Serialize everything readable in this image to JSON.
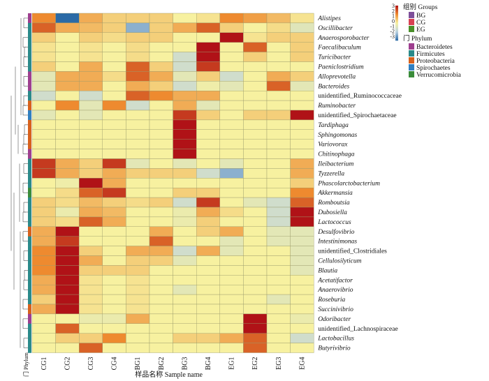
{
  "chart_data": {
    "type": "heatmap",
    "xlabel": "样品名称 Sample name",
    "columns": [
      "CG1",
      "CG2",
      "CG3",
      "CG4",
      "BG1",
      "BG2",
      "BG3",
      "BG4",
      "EG1",
      "EG2",
      "EG3",
      "EG4"
    ],
    "column_groups": [
      "CG",
      "CG",
      "CG",
      "CG",
      "BG",
      "BG",
      "BG",
      "BG",
      "EG",
      "EG",
      "EG",
      "EG"
    ],
    "rows": [
      "Alistipes",
      "Oscillibacter",
      "Anaerosporobacter",
      "Faecalibaculum",
      "Turicibacter",
      "Paeniclostridium",
      "Alloprevotella",
      "Bacteroides",
      "unidentified_Ruminococcaceae",
      "Ruminobacter",
      "unidentified_Spirochaetaceae",
      "Tardiphaga",
      "Sphingomonas",
      "Variovorax",
      "Chitinophaga",
      "Ileibacterium",
      "Tyzzerella",
      "Phascolarctobacterium",
      "Akkermansia",
      "Romboutsia",
      "Dubosiella",
      "Lactococcus",
      "Desulfovibrio",
      "Intestinimonas",
      "unidentified_Clostridiales",
      "Cellulosilyticum",
      "Blautia",
      "Acetatifactor",
      "Anaerovibrio",
      "Roseburia",
      "Succinivibrio",
      "Odoribacter",
      "unidentified_Lachnospiraceae",
      "Lactobacillus",
      "Butyrivibrio"
    ],
    "row_phylum": [
      "Bacteroidetes",
      "Firmicutes",
      "Firmicutes",
      "Firmicutes",
      "Firmicutes",
      "Firmicutes",
      "Bacteroidetes",
      "Bacteroidetes",
      "Firmicutes",
      "Proteobacteria",
      "Spirochaetes",
      "Proteobacteria",
      "Proteobacteria",
      "Proteobacteria",
      "Bacteroidetes",
      "Firmicutes",
      "Firmicutes",
      "Firmicutes",
      "Verrucomicrobia",
      "Firmicutes",
      "Firmicutes",
      "Firmicutes",
      "Proteobacteria",
      "Firmicutes",
      "Firmicutes",
      "Firmicutes",
      "Firmicutes",
      "Firmicutes",
      "Firmicutes",
      "Firmicutes",
      "Proteobacteria",
      "Bacteroidetes",
      "Firmicutes",
      "Firmicutes",
      "Firmicutes"
    ],
    "values": [
      [
        1.5,
        -3,
        1,
        0.5,
        0.5,
        0.5,
        0,
        0.2,
        1.5,
        1.2,
        0.8,
        0.2
      ],
      [
        2,
        1,
        0.8,
        0.5,
        -2,
        0.5,
        1,
        2,
        0.5,
        0,
        0.3,
        -0.6
      ],
      [
        0.5,
        0,
        0.5,
        0.3,
        0.5,
        0.5,
        0,
        0,
        3,
        0.2,
        0.5,
        0.5
      ],
      [
        0.2,
        0,
        0.2,
        0,
        0.3,
        0,
        0,
        3,
        0,
        2,
        0,
        0.5
      ],
      [
        0.2,
        0,
        0.2,
        0,
        0.3,
        0,
        -1,
        3,
        0,
        0.5,
        0,
        0.5
      ],
      [
        0.5,
        0,
        1,
        0,
        2,
        0.5,
        -1,
        2.5,
        0,
        0,
        0,
        0
      ],
      [
        -0.5,
        1,
        1,
        0.3,
        2,
        1,
        -0.5,
        0.5,
        -1,
        0,
        1,
        0.5
      ],
      [
        -0.5,
        1,
        1,
        0,
        1,
        0.5,
        -1,
        -0.2,
        -0.5,
        0,
        2,
        -0.5
      ],
      [
        -1,
        0,
        -1,
        0,
        2,
        1.5,
        1,
        1,
        0,
        0,
        0,
        0
      ],
      [
        0,
        1.5,
        -0.5,
        1.5,
        -1,
        0,
        1,
        -0.5,
        0,
        0,
        0,
        0
      ],
      [
        -0.5,
        0,
        -0.5,
        0,
        0,
        0,
        2.5,
        0.5,
        0,
        0.5,
        0.5,
        3
      ],
      [
        0,
        0,
        0,
        0,
        0,
        0,
        3.5,
        0,
        0,
        0,
        0,
        0
      ],
      [
        0,
        0,
        0,
        0,
        0,
        0,
        3.5,
        0,
        0,
        0,
        0,
        0
      ],
      [
        0,
        0,
        0,
        0,
        0,
        0,
        3.5,
        0,
        0,
        0,
        0,
        0
      ],
      [
        0,
        0,
        0,
        0,
        0,
        0,
        3.5,
        0,
        0,
        0,
        0,
        0
      ],
      [
        2.5,
        1,
        0.5,
        2.5,
        -0.5,
        0,
        -0.5,
        0,
        -0.5,
        0,
        0,
        1
      ],
      [
        2.5,
        1,
        0.5,
        1,
        0.5,
        0.5,
        0.5,
        -1,
        -2,
        0,
        0,
        1
      ],
      [
        0,
        -0.2,
        3,
        1,
        0,
        0,
        0,
        0,
        0,
        0,
        0,
        0.5
      ],
      [
        0,
        0.3,
        2,
        2.5,
        0,
        0,
        0.5,
        0.5,
        0,
        0,
        0,
        1.5
      ],
      [
        0.5,
        0.3,
        0.8,
        0.5,
        0.3,
        0.5,
        -1,
        2.5,
        0,
        -0.5,
        -1,
        2
      ],
      [
        0.5,
        -0.3,
        1,
        0.8,
        0,
        0,
        -0.3,
        1,
        0.3,
        0,
        -1,
        3
      ],
      [
        0.5,
        0.3,
        2,
        1,
        0,
        0,
        -0.3,
        0.5,
        0,
        0,
        -1,
        3
      ],
      [
        1,
        3,
        0,
        0,
        0,
        1,
        0,
        0.5,
        1,
        0,
        -0.5,
        -0.5
      ],
      [
        1,
        2.5,
        0,
        0,
        0,
        2,
        0,
        0,
        -0.5,
        0,
        -0.5,
        -0.5
      ],
      [
        1.5,
        3,
        0.5,
        0,
        1,
        1,
        -1,
        1,
        -0.5,
        0,
        0,
        -0.5
      ],
      [
        1.5,
        3,
        1,
        0,
        0.5,
        0.5,
        -0.5,
        0,
        0,
        0,
        0,
        -0.5
      ],
      [
        1.5,
        3,
        0.5,
        0.5,
        0.5,
        0,
        0,
        0,
        0,
        0,
        0,
        -0.5
      ],
      [
        1,
        3.5,
        0.2,
        0,
        0.2,
        0,
        0,
        0,
        0,
        0,
        0,
        0
      ],
      [
        1,
        3.5,
        0.2,
        0,
        0.2,
        0,
        -0.5,
        0,
        0,
        0,
        0,
        0
      ],
      [
        0.5,
        3.5,
        0.2,
        0,
        0.2,
        0,
        0,
        0,
        0,
        0,
        -0.5,
        0
      ],
      [
        1,
        3.5,
        0.2,
        0,
        0.2,
        0,
        0,
        0,
        0,
        0,
        0,
        0
      ],
      [
        0,
        0,
        -0.3,
        -0.3,
        1,
        0,
        0,
        0,
        0,
        3,
        0,
        -0.3
      ],
      [
        0,
        2,
        0,
        0,
        0,
        0,
        0,
        0,
        0,
        3,
        0,
        0
      ],
      [
        0,
        0.5,
        0.5,
        1.5,
        0,
        0,
        0.5,
        0.5,
        1,
        2,
        0,
        -1
      ],
      [
        0,
        0,
        2,
        0,
        0,
        0,
        0,
        0,
        0,
        2,
        0,
        0
      ]
    ],
    "color_scale": {
      "min": -3,
      "max": 3,
      "low": "#2b6aa6",
      "mid": "#f7f1a0",
      "high": "#b01217"
    },
    "legend": {
      "scale_ticks": [
        "3",
        "2",
        "1",
        "0",
        "-1",
        "-2",
        "-3"
      ],
      "groups_title": "组别 Groups",
      "groups": [
        {
          "name": "BG",
          "color": "#7e4f9a"
        },
        {
          "name": "CG",
          "color": "#d94153"
        },
        {
          "name": "EG",
          "color": "#4a8f2a"
        }
      ],
      "phylum_title": "门 Phylum",
      "phyla": [
        {
          "name": "Bacteroidetes",
          "color": "#9e3f8f"
        },
        {
          "name": "Firmicutes",
          "color": "#2b8a8a"
        },
        {
          "name": "Proteobacteria",
          "color": "#d8611c"
        },
        {
          "name": "Spirochaetes",
          "color": "#2f7fc1"
        },
        {
          "name": "Verrucomicrobia",
          "color": "#3a8c3a"
        }
      ]
    },
    "phylum_axis_label": "门 Phylum"
  }
}
